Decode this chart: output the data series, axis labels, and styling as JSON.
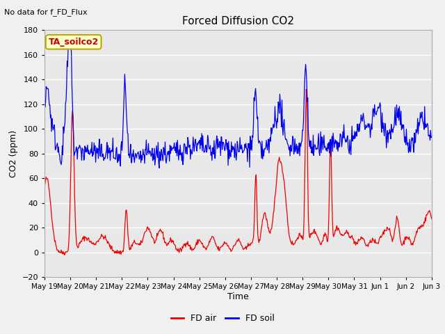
{
  "title": "Forced Diffusion CO2",
  "top_left_text": "No data for f_FD_Flux",
  "xlabel": "Time",
  "ylabel": "CO2 (ppm)",
  "ylim": [
    -20,
    180
  ],
  "yticks": [
    -20,
    0,
    20,
    40,
    60,
    80,
    100,
    120,
    140,
    160,
    180
  ],
  "annotation_text": "TA_soilco2",
  "annotation_bg": "#ffffcc",
  "annotation_border": "#bbaa00",
  "bg_color": "#f0f0f0",
  "plot_bg_color": "#e8e8e8",
  "red_color": "#ee0000",
  "blue_color": "#0000ee",
  "legend_labels": [
    "FD air",
    "FD soil"
  ],
  "x_tick_labels": [
    "May 19",
    "May 20",
    "May 21",
    "May 22",
    "May 23",
    "May 24",
    "May 25",
    "May 26",
    "May 27",
    "May 28",
    "May 29",
    "May 30",
    "May 31",
    "Jun 1",
    "Jun 2",
    "Jun 3"
  ],
  "x_tick_positions": [
    0,
    24,
    48,
    72,
    96,
    120,
    144,
    168,
    192,
    216,
    240,
    264,
    288,
    312,
    336,
    360
  ],
  "xlim": [
    0,
    360
  ],
  "noise_seed": 42
}
